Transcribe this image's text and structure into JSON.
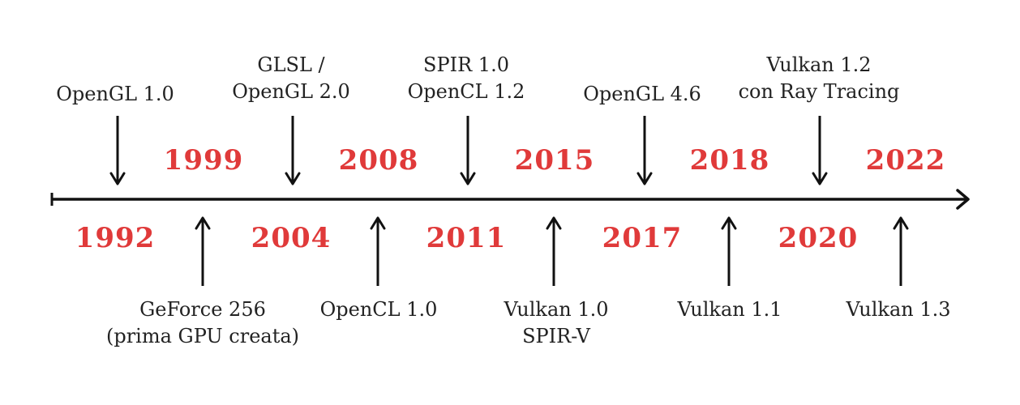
{
  "colors": {
    "year": "#e03a3a",
    "axis": "#111111",
    "label": "#222222",
    "background": "#ffffff"
  },
  "years_above": [
    "1999",
    "2008",
    "2015",
    "2018",
    "2022"
  ],
  "years_below": [
    "1992",
    "2004",
    "2011",
    "2017",
    "2020"
  ],
  "events_top": [
    {
      "lines": [
        "OpenGL 1.0"
      ]
    },
    {
      "lines": [
        "GLSL /",
        "OpenGL 2.0"
      ]
    },
    {
      "lines": [
        "SPIR 1.0",
        "OpenCL 1.2"
      ]
    },
    {
      "lines": [
        "OpenGL 4.6"
      ]
    },
    {
      "lines": [
        "Vulkan 1.2",
        "con Ray Tracing"
      ]
    }
  ],
  "events_bottom": [
    {
      "lines": [
        "GeForce 256",
        "(prima GPU creata)"
      ]
    },
    {
      "lines": [
        "OpenCL 1.0"
      ]
    },
    {
      "lines": [
        "Vulkan 1.0",
        "SPIR-V"
      ]
    },
    {
      "lines": [
        "Vulkan 1.1"
      ]
    },
    {
      "lines": [
        "Vulkan 1.3"
      ]
    }
  ]
}
